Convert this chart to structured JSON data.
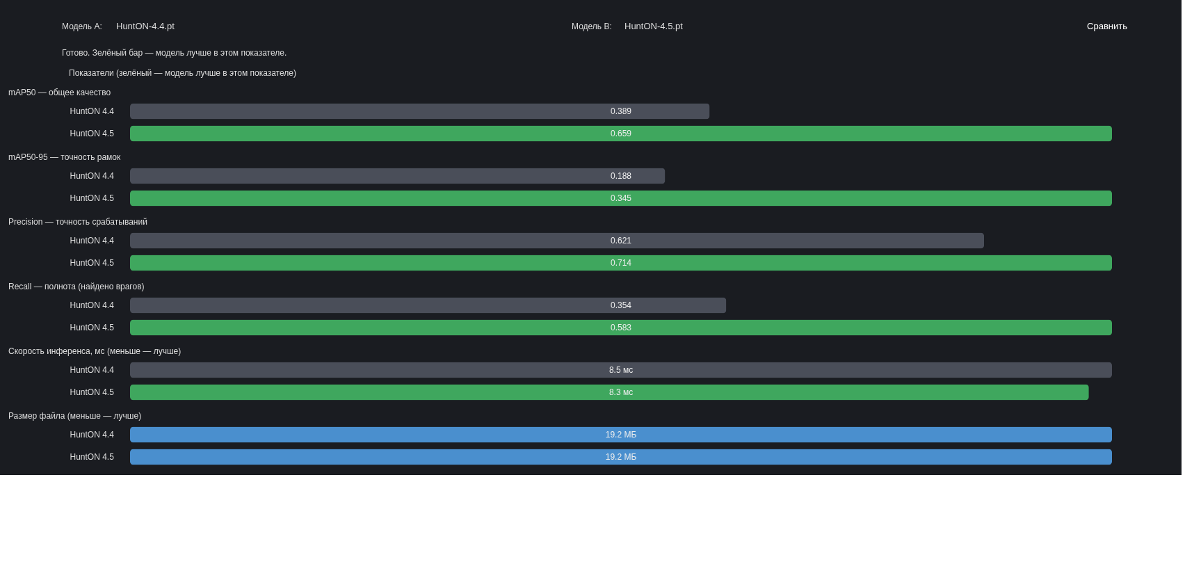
{
  "chart_data": [
    {
      "type": "other",
      "annotations": [
        "Модель A:",
        "HuntON-4.4.pt",
        "Модель B:",
        "HuntON-4.5.pt",
        "Сравнить",
        "Готово. Зелёный бар — модель лучше в этом показателе.",
        "Показатели (зелёный — модель лучше в этом показателе)"
      ]
    },
    {
      "type": "bar",
      "orientation": "horizontal",
      "title": "mAP50 — общее качество",
      "categories": [
        "HuntON 4.4",
        "HuntON 4.5"
      ],
      "values": [
        0.389,
        0.659
      ],
      "colors": [
        "#4a4e59",
        "#3fa75e"
      ],
      "xlim": [
        0,
        0.659
      ],
      "tick_labels": "y",
      "data_labels": true
    },
    {
      "type": "bar",
      "orientation": "horizontal",
      "title": "mAP50-95 — точность рамок",
      "categories": [
        "HuntON 4.4",
        "HuntON 4.5"
      ],
      "values": [
        0.188,
        0.345
      ],
      "colors": [
        "#4a4e59",
        "#3fa75e"
      ],
      "xlim": [
        0,
        0.345
      ],
      "tick_labels": "y",
      "data_labels": true
    },
    {
      "type": "bar",
      "orientation": "horizontal",
      "title": "Precision — точность срабатываний",
      "categories": [
        "HuntON 4.4",
        "HuntON 4.5"
      ],
      "values": [
        0.621,
        0.714
      ],
      "colors": [
        "#4a4e59",
        "#3fa75e"
      ],
      "xlim": [
        0,
        0.714
      ],
      "tick_labels": "y",
      "data_labels": true
    },
    {
      "type": "bar",
      "orientation": "horizontal",
      "title": "Recall — полнота (найдено врагов)",
      "categories": [
        "HuntON 4.4",
        "HuntON 4.5"
      ],
      "values": [
        0.354,
        0.583
      ],
      "colors": [
        "#4a4e59",
        "#3fa75e"
      ],
      "xlim": [
        0,
        0.583
      ],
      "tick_labels": "y",
      "data_labels": true
    },
    {
      "type": "bar",
      "orientation": "horizontal",
      "title": "Скорость инференса, мс (меньше — лучше)",
      "categories": [
        "HuntON 4.4",
        "HuntON 4.5"
      ],
      "values": [
        8.5,
        8.3
      ],
      "value_labels": [
        "8.5 мс",
        "8.3 мс"
      ],
      "colors": [
        "#4a4e59",
        "#3fa75e"
      ],
      "xlim": [
        0,
        8.5
      ],
      "tick_labels": "y"
    },
    {
      "type": "bar",
      "orientation": "horizontal",
      "title": "Размер файла (меньше — лучше)",
      "categories": [
        "HuntON 4.4",
        "HuntON 4.5"
      ],
      "values": [
        19.2,
        19.2
      ],
      "value_labels": [
        "19.2 МБ",
        "19.2 МБ"
      ],
      "colors": [
        "#4a8fce",
        "#4a8fce"
      ],
      "tick_labels": "y"
    }
  ]
}
